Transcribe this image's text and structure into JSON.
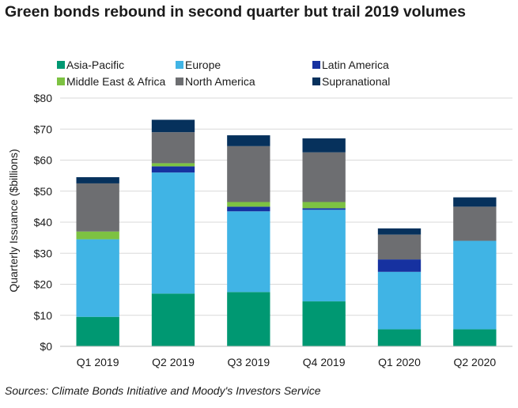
{
  "chart_data": {
    "type": "bar",
    "stacked": true,
    "title": "Green bonds rebound in second quarter but trail 2019 volumes",
    "ylabel": "Quarterly Issuance ($billions)",
    "xlabel": "",
    "categories": [
      "Q1 2019",
      "Q2 2019",
      "Q3 2019",
      "Q4 2019",
      "Q1 2020",
      "Q2 2020"
    ],
    "ylim": [
      0,
      80
    ],
    "yticks": [
      "$0",
      "$10",
      "$20",
      "$30",
      "$40",
      "$50",
      "$60",
      "$70",
      "$80"
    ],
    "grid": true,
    "legend_position": "top",
    "series": [
      {
        "name": "Asia-Pacific",
        "color": "#009872",
        "values": [
          9.5,
          17.0,
          17.5,
          14.5,
          5.5,
          5.5
        ]
      },
      {
        "name": "Europe",
        "color": "#40b4e5",
        "values": [
          25.0,
          39.0,
          26.0,
          29.5,
          18.5,
          28.5
        ]
      },
      {
        "name": "Latin America",
        "color": "#1631a0",
        "values": [
          0.0,
          2.0,
          1.5,
          0.5,
          4.0,
          0.0
        ]
      },
      {
        "name": "Middle East & Africa",
        "color": "#7dc242",
        "values": [
          2.5,
          1.0,
          1.5,
          2.0,
          0.0,
          0.0
        ]
      },
      {
        "name": "North America",
        "color": "#6d6e71",
        "values": [
          15.5,
          10.0,
          18.0,
          16.0,
          8.0,
          11.0
        ]
      },
      {
        "name": "Supranational",
        "color": "#06315c",
        "values": [
          2.0,
          4.0,
          3.5,
          4.5,
          2.0,
          3.0
        ]
      }
    ]
  },
  "source_note": "Sources: Climate Bonds Initiative and Moody's Investors Service"
}
